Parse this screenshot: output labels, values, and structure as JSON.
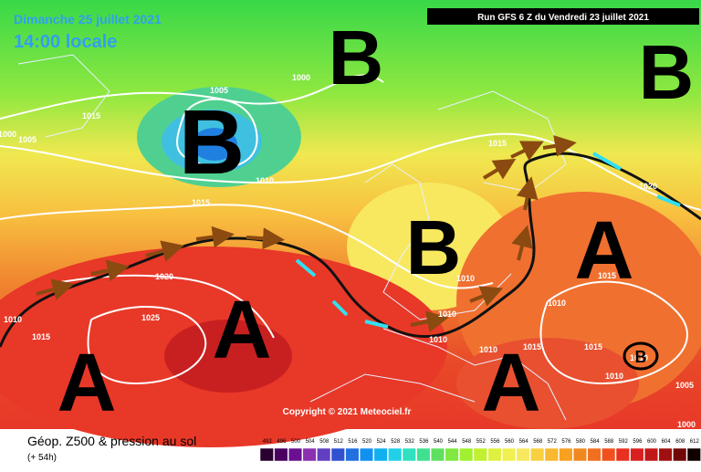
{
  "header": {
    "date": "Dimanche 25 juillet 2021",
    "time": "14:00 locale",
    "run": "Run GFS 6 Z du Vendredi 23 juillet 2021"
  },
  "copyright": "Copyright © 2021 Meteociel.fr",
  "footer": {
    "title": "Géop. Z500 & pression au sol",
    "subtitle": "(+ 54h)"
  },
  "scale": {
    "labels": [
      "492",
      "496",
      "500",
      "504",
      "508",
      "512",
      "516",
      "520",
      "524",
      "528",
      "532",
      "536",
      "540",
      "544",
      "548",
      "552",
      "556",
      "560",
      "564",
      "568",
      "572",
      "576",
      "580",
      "584",
      "588",
      "592",
      "596",
      "600",
      "604",
      "608",
      "612"
    ],
    "colors": [
      "#2a0030",
      "#4a0060",
      "#6a1090",
      "#8a30b0",
      "#6040c0",
      "#3050d0",
      "#2070e0",
      "#1090f0",
      "#10b0f0",
      "#20d0e8",
      "#30e0c0",
      "#40e090",
      "#60e060",
      "#80e840",
      "#a0f030",
      "#c0f030",
      "#e0f040",
      "#f0f050",
      "#f8e860",
      "#f8d040",
      "#f8b830",
      "#f8a020",
      "#f08820",
      "#f07020",
      "#f05020",
      "#e83020",
      "#d82020",
      "#c01818",
      "#a01010",
      "#700808",
      "#100000"
    ]
  },
  "pressure_labels": [
    "1000",
    "1005",
    "1015",
    "1005",
    "1000",
    "1010",
    "1015",
    "1020",
    "1025",
    "1015",
    "1010",
    "1015",
    "1020",
    "1010",
    "1010",
    "1010",
    "1015",
    "1010",
    "1015",
    "1010",
    "1015",
    "1010",
    "1005",
    "1000",
    "1010"
  ],
  "centers": [
    "B",
    "B",
    "B",
    "B",
    "A",
    "A",
    "A",
    "A",
    "B"
  ]
}
